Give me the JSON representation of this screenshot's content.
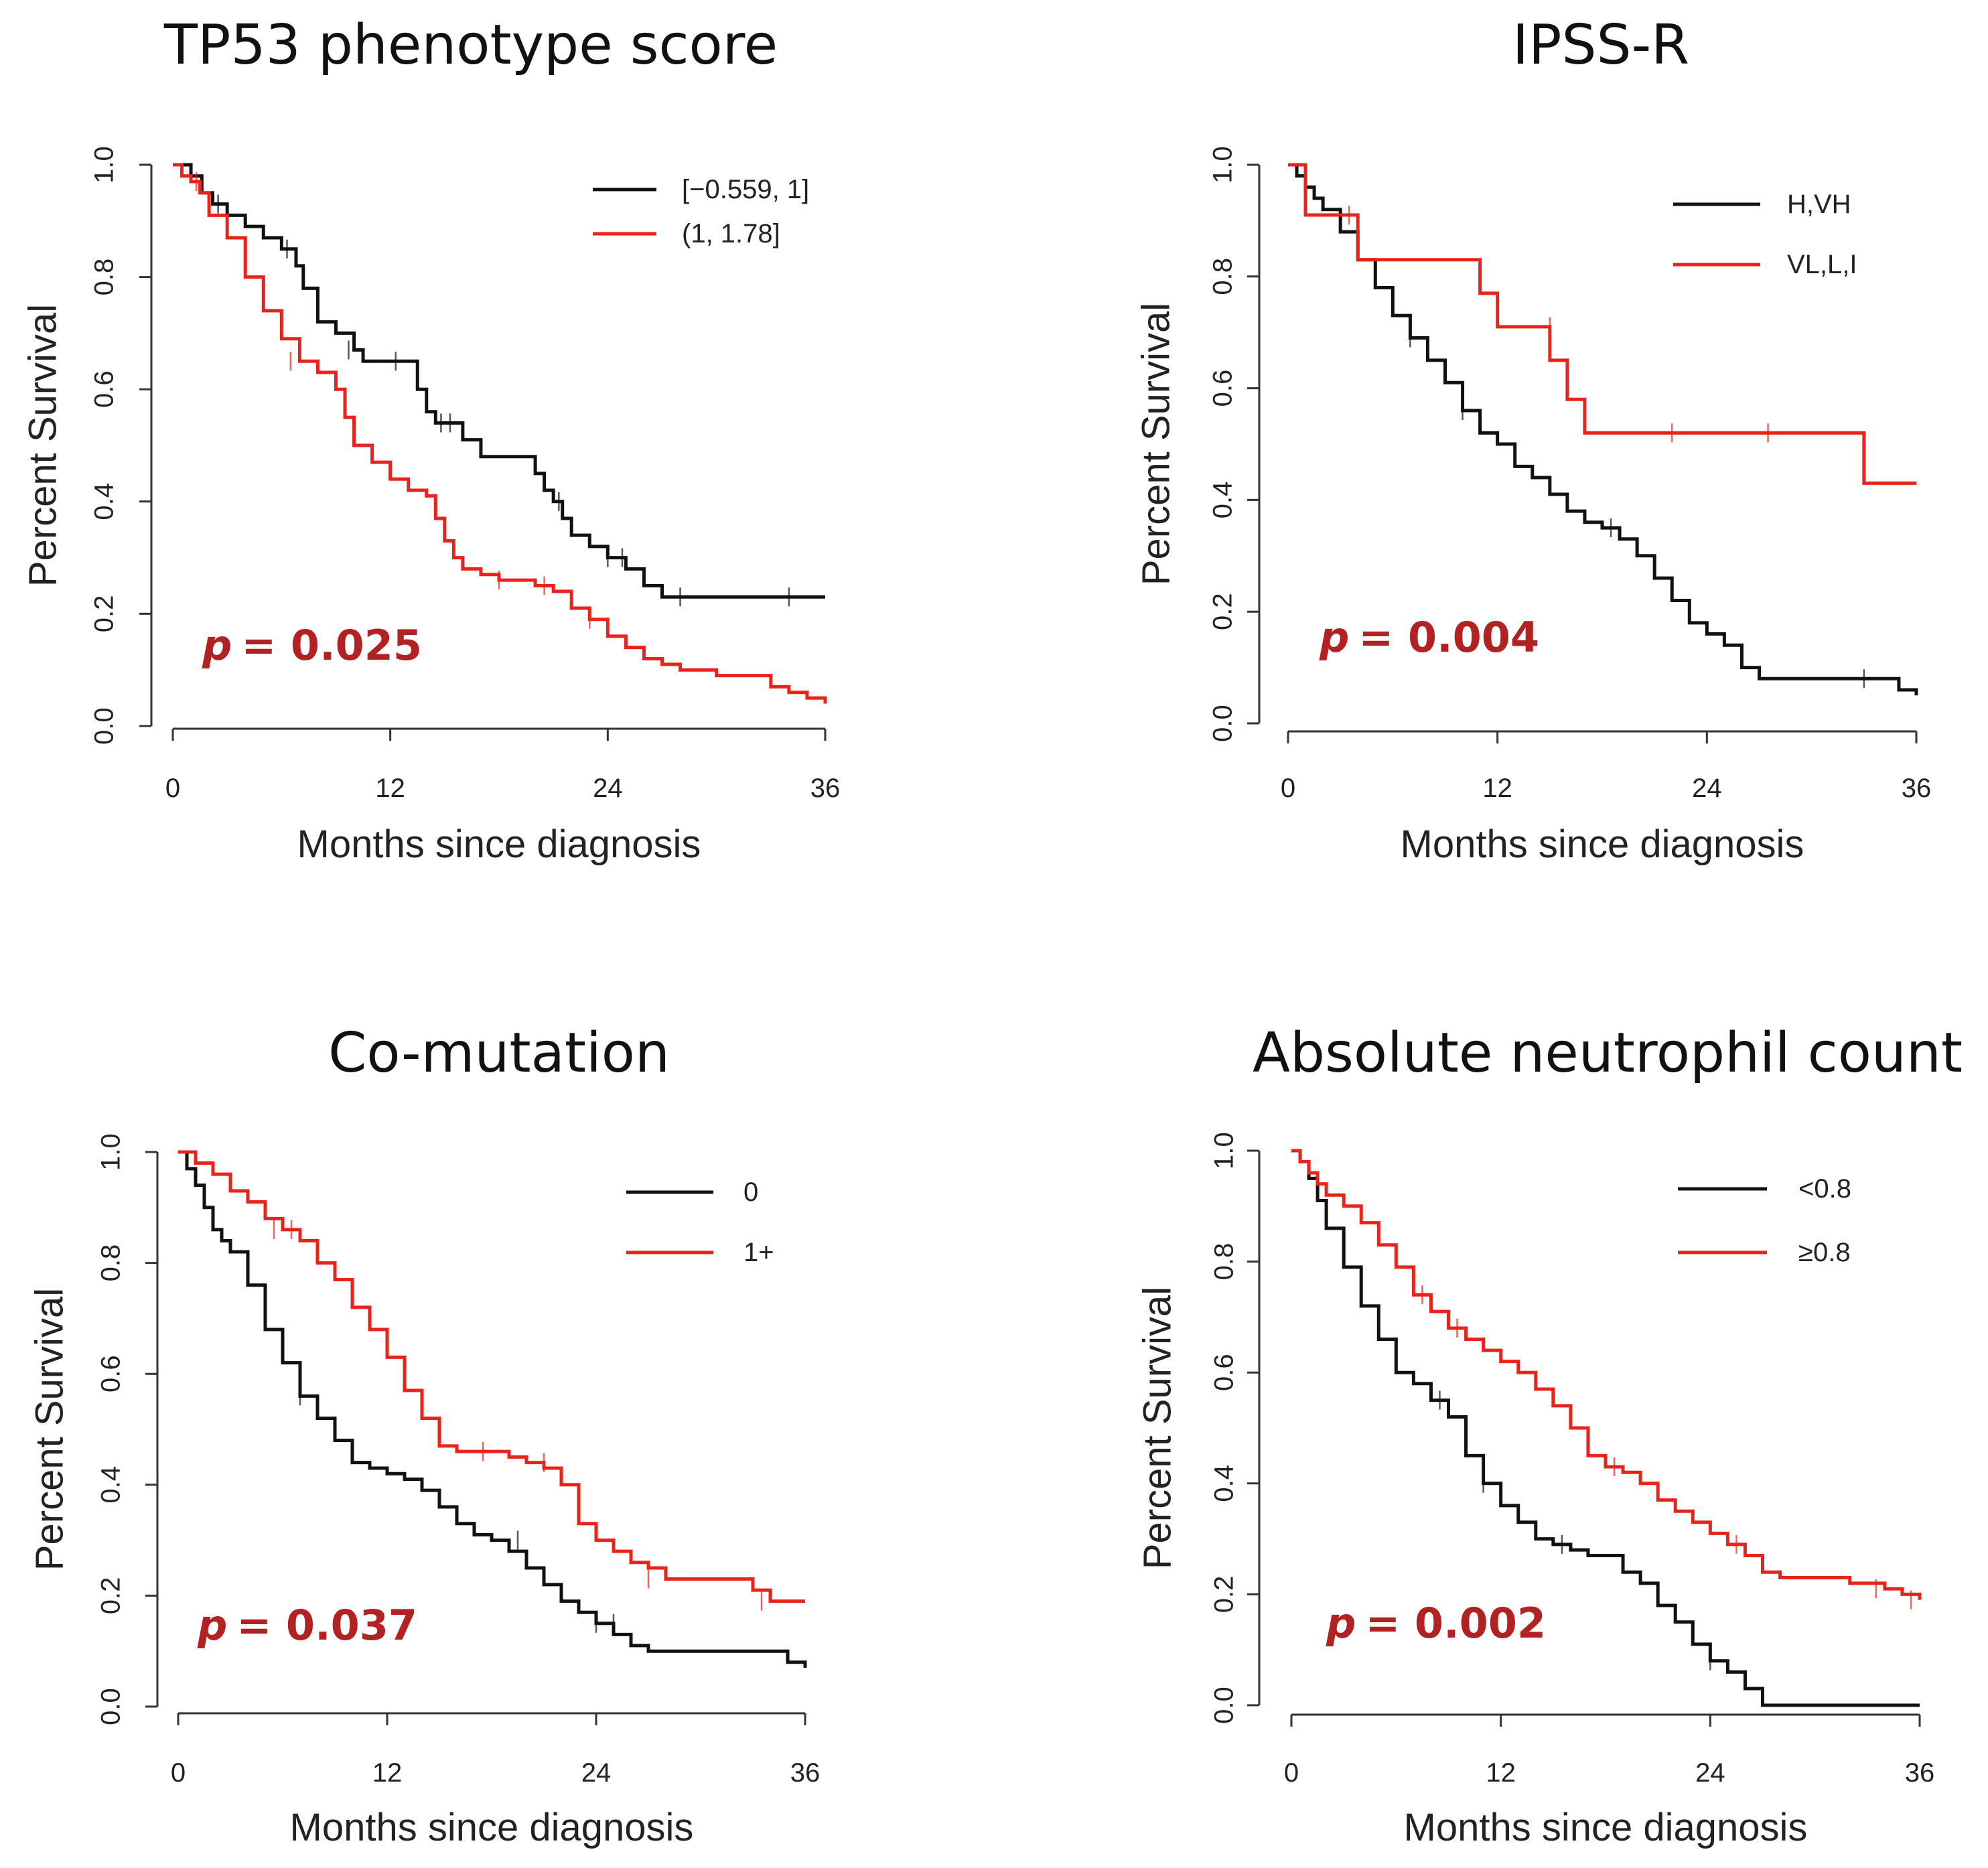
{
  "colors": {
    "black": "#111111",
    "red": "#e8231b",
    "pvalue": "#b22222"
  },
  "axis_text": {
    "y": "Percent Survival",
    "x": "Months since diagnosis"
  },
  "chart_data": [
    {
      "type": "line",
      "subtype": "kaplan-meier",
      "title": "TP53 phenotype score",
      "xlabel": "Months since diagnosis",
      "ylabel": "Percent Survival",
      "xlim": [
        0,
        36
      ],
      "ylim": [
        0,
        1
      ],
      "xticks": [
        "0",
        "12",
        "24",
        "36"
      ],
      "yticks": [
        "0.0",
        "0.2",
        "0.4",
        "0.6",
        "0.8",
        "1.0"
      ],
      "legend_position": "top-right",
      "p_label": "p",
      "p_value": "= 0.025",
      "series": [
        {
          "name": "[−0.559, 1]",
          "color": "black",
          "x": [
            0,
            1,
            1.6,
            2.2,
            3,
            4,
            5,
            6,
            6.8,
            7.2,
            8,
            9,
            10,
            10.5,
            12,
            13.5,
            14,
            14.5,
            16,
            17,
            19,
            20,
            20.5,
            21,
            21.5,
            22,
            23,
            24,
            25,
            26,
            27,
            28,
            36
          ],
          "y": [
            1,
            0.98,
            0.95,
            0.93,
            0.91,
            0.89,
            0.87,
            0.85,
            0.82,
            0.78,
            0.72,
            0.7,
            0.67,
            0.65,
            0.65,
            0.6,
            0.56,
            0.54,
            0.51,
            0.48,
            0.48,
            0.45,
            0.42,
            0.4,
            0.37,
            0.34,
            0.32,
            0.3,
            0.28,
            0.25,
            0.23,
            0.23,
            0.23
          ],
          "censored": [
            [
              2.5,
              0.93
            ],
            [
              6.3,
              0.85
            ],
            [
              9.7,
              0.67
            ],
            [
              12.3,
              0.65
            ],
            [
              14.8,
              0.54
            ],
            [
              15.3,
              0.54
            ],
            [
              21.3,
              0.4
            ],
            [
              24,
              0.3
            ],
            [
              24.8,
              0.3
            ],
            [
              28,
              0.23
            ],
            [
              34,
              0.23
            ]
          ]
        },
        {
          "name": "(1, 1.78]",
          "color": "red",
          "x": [
            0,
            0.5,
            1,
            1.5,
            2,
            3,
            4,
            5,
            6,
            7,
            8,
            9,
            9.5,
            10,
            11,
            12,
            13,
            14,
            14.5,
            15,
            15.5,
            16,
            17,
            18,
            20,
            21,
            22,
            23,
            24,
            25,
            26,
            27,
            28,
            29,
            30,
            31,
            32,
            33,
            34,
            35,
            36
          ],
          "y": [
            1,
            0.98,
            0.97,
            0.95,
            0.91,
            0.87,
            0.8,
            0.74,
            0.69,
            0.65,
            0.63,
            0.6,
            0.55,
            0.5,
            0.47,
            0.44,
            0.42,
            0.41,
            0.37,
            0.33,
            0.3,
            0.28,
            0.27,
            0.26,
            0.25,
            0.24,
            0.21,
            0.19,
            0.16,
            0.14,
            0.12,
            0.11,
            0.1,
            0.1,
            0.09,
            0.09,
            0.09,
            0.07,
            0.06,
            0.05,
            0.04
          ],
          "censored": [
            [
              1.3,
              0.97
            ],
            [
              6.5,
              0.65
            ],
            [
              18,
              0.26
            ],
            [
              20.5,
              0.25
            ],
            [
              23,
              0.19
            ]
          ]
        }
      ]
    },
    {
      "type": "line",
      "subtype": "kaplan-meier",
      "title": "IPSS-R",
      "xlabel": "Months since diagnosis",
      "ylabel": "Percent Survival",
      "xlim": [
        0,
        36
      ],
      "ylim": [
        0,
        1
      ],
      "xticks": [
        "0",
        "12",
        "24",
        "36"
      ],
      "yticks": [
        "0.0",
        "0.2",
        "0.4",
        "0.6",
        "0.8",
        "1.0"
      ],
      "legend_position": "top-right",
      "p_label": "p",
      "p_value": "= 0.004",
      "series": [
        {
          "name": "H,VH",
          "color": "black",
          "x": [
            0,
            0.5,
            1,
            1.5,
            2,
            3,
            4,
            5,
            6,
            7,
            8,
            9,
            10,
            11,
            12,
            13,
            14,
            15,
            16,
            17,
            18,
            19,
            20,
            21,
            22,
            23,
            24,
            25,
            26,
            27,
            28,
            30,
            32,
            34,
            35,
            36
          ],
          "y": [
            1,
            0.98,
            0.96,
            0.94,
            0.92,
            0.88,
            0.83,
            0.78,
            0.73,
            0.69,
            0.65,
            0.61,
            0.56,
            0.52,
            0.5,
            0.46,
            0.44,
            0.41,
            0.38,
            0.36,
            0.35,
            0.33,
            0.3,
            0.26,
            0.22,
            0.18,
            0.16,
            0.14,
            0.1,
            0.08,
            0.08,
            0.08,
            0.08,
            0.08,
            0.06,
            0.05
          ],
          "censored": [
            [
              1,
              0.98
            ],
            [
              4,
              0.88
            ],
            [
              7,
              0.69
            ],
            [
              10,
              0.56
            ],
            [
              18.5,
              0.35
            ],
            [
              33,
              0.08
            ]
          ]
        },
        {
          "name": "VL,L,I",
          "color": "red",
          "x": [
            0,
            1,
            3,
            4,
            11,
            12,
            15,
            16,
            17,
            18,
            22,
            28,
            33,
            34,
            36
          ],
          "y": [
            1,
            0.91,
            0.91,
            0.83,
            0.77,
            0.71,
            0.65,
            0.58,
            0.52,
            0.52,
            0.52,
            0.52,
            0.43,
            0.43,
            0.43
          ],
          "censored": [
            [
              3.5,
              0.91
            ],
            [
              15,
              0.71
            ],
            [
              22,
              0.52
            ],
            [
              27.5,
              0.52
            ]
          ]
        }
      ]
    },
    {
      "type": "line",
      "subtype": "kaplan-meier",
      "title": "Co-mutation",
      "xlabel": "Months since diagnosis",
      "ylabel": "Percent Survival",
      "xlim": [
        0,
        36
      ],
      "ylim": [
        0,
        1
      ],
      "xticks": [
        "0",
        "12",
        "24",
        "36"
      ],
      "yticks": [
        "0.0",
        "0.2",
        "0.4",
        "0.6",
        "0.8",
        "1.0"
      ],
      "legend_position": "top-right",
      "p_label": "p",
      "p_value": "= 0.037",
      "series": [
        {
          "name": "0",
          "color": "black",
          "x": [
            0,
            0.5,
            1,
            1.5,
            2,
            2.5,
            3,
            4,
            5,
            6,
            7,
            8,
            9,
            10,
            11,
            12,
            13,
            14,
            15,
            16,
            17,
            18,
            19,
            20,
            21,
            22,
            23,
            24,
            25,
            26,
            27,
            28,
            30,
            32,
            34,
            35,
            36
          ],
          "y": [
            1,
            0.97,
            0.94,
            0.9,
            0.86,
            0.84,
            0.82,
            0.76,
            0.68,
            0.62,
            0.56,
            0.52,
            0.48,
            0.44,
            0.43,
            0.42,
            0.41,
            0.39,
            0.36,
            0.33,
            0.31,
            0.3,
            0.28,
            0.25,
            0.22,
            0.19,
            0.17,
            0.15,
            0.13,
            0.11,
            0.1,
            0.1,
            0.1,
            0.1,
            0.1,
            0.08,
            0.07
          ],
          "censored": [
            [
              7,
              0.56
            ],
            [
              19.5,
              0.3
            ],
            [
              24,
              0.15
            ],
            [
              25,
              0.15
            ]
          ]
        },
        {
          "name": "1+",
          "color": "red",
          "x": [
            0,
            1,
            2,
            3,
            4,
            5,
            6,
            7,
            8,
            9,
            10,
            11,
            12,
            13,
            14,
            15,
            16,
            17,
            18,
            19,
            20,
            21,
            22,
            23,
            24,
            25,
            26,
            27,
            28,
            30,
            32,
            33,
            34,
            35,
            36
          ],
          "y": [
            1,
            0.98,
            0.96,
            0.93,
            0.91,
            0.88,
            0.86,
            0.84,
            0.8,
            0.77,
            0.72,
            0.68,
            0.63,
            0.57,
            0.52,
            0.47,
            0.46,
            0.46,
            0.46,
            0.45,
            0.44,
            0.43,
            0.4,
            0.33,
            0.3,
            0.28,
            0.26,
            0.25,
            0.23,
            0.23,
            0.23,
            0.21,
            0.19,
            0.19,
            0.19
          ],
          "censored": [
            [
              5.5,
              0.86
            ],
            [
              6.5,
              0.86
            ],
            [
              17.5,
              0.46
            ],
            [
              21,
              0.44
            ],
            [
              27,
              0.23
            ],
            [
              33.5,
              0.19
            ]
          ]
        }
      ]
    },
    {
      "type": "line",
      "subtype": "kaplan-meier",
      "title": "Absolute neutrophil count",
      "xlabel": "Months since diagnosis",
      "ylabel": "Percent Survival",
      "xlim": [
        0,
        36
      ],
      "ylim": [
        0,
        1
      ],
      "xticks": [
        "0",
        "12",
        "24",
        "36"
      ],
      "yticks": [
        "0.0",
        "0.2",
        "0.4",
        "0.6",
        "0.8",
        "1.0"
      ],
      "legend_position": "top-right",
      "p_label": "p",
      "p_value": "= 0.002",
      "series": [
        {
          "name": "<0.8",
          "color": "black",
          "x": [
            0,
            0.5,
            1,
            1.5,
            2,
            3,
            4,
            5,
            6,
            7,
            8,
            9,
            10,
            11,
            12,
            13,
            14,
            15,
            16,
            17,
            18,
            19,
            20,
            21,
            22,
            23,
            24,
            25,
            26,
            27,
            36
          ],
          "y": [
            1,
            0.98,
            0.95,
            0.91,
            0.86,
            0.79,
            0.72,
            0.66,
            0.6,
            0.58,
            0.55,
            0.52,
            0.45,
            0.4,
            0.36,
            0.33,
            0.3,
            0.29,
            0.28,
            0.27,
            0.27,
            0.24,
            0.22,
            0.18,
            0.15,
            0.11,
            0.08,
            0.06,
            0.03,
            0,
            0
          ],
          "censored": [
            [
              8.5,
              0.55
            ],
            [
              11,
              0.4
            ],
            [
              15.5,
              0.29
            ],
            [
              24,
              0.08
            ]
          ]
        },
        {
          "name": "≥0.8",
          "color": "red",
          "x": [
            0,
            0.5,
            1,
            1.5,
            2,
            3,
            4,
            5,
            6,
            7,
            8,
            9,
            10,
            11,
            12,
            13,
            14,
            15,
            16,
            17,
            18,
            19,
            20,
            21,
            22,
            23,
            24,
            25,
            26,
            27,
            28,
            30,
            32,
            34,
            35,
            36
          ],
          "y": [
            1,
            0.98,
            0.96,
            0.94,
            0.92,
            0.9,
            0.87,
            0.83,
            0.79,
            0.74,
            0.71,
            0.68,
            0.66,
            0.64,
            0.62,
            0.6,
            0.57,
            0.54,
            0.5,
            0.45,
            0.43,
            0.42,
            0.4,
            0.37,
            0.35,
            0.33,
            0.31,
            0.29,
            0.27,
            0.24,
            0.23,
            0.23,
            0.22,
            0.21,
            0.2,
            0.19
          ],
          "censored": [
            [
              7.5,
              0.74
            ],
            [
              9.5,
              0.68
            ],
            [
              18.5,
              0.43
            ],
            [
              25.5,
              0.29
            ],
            [
              33.5,
              0.21
            ],
            [
              35.5,
              0.19
            ]
          ]
        }
      ]
    }
  ]
}
